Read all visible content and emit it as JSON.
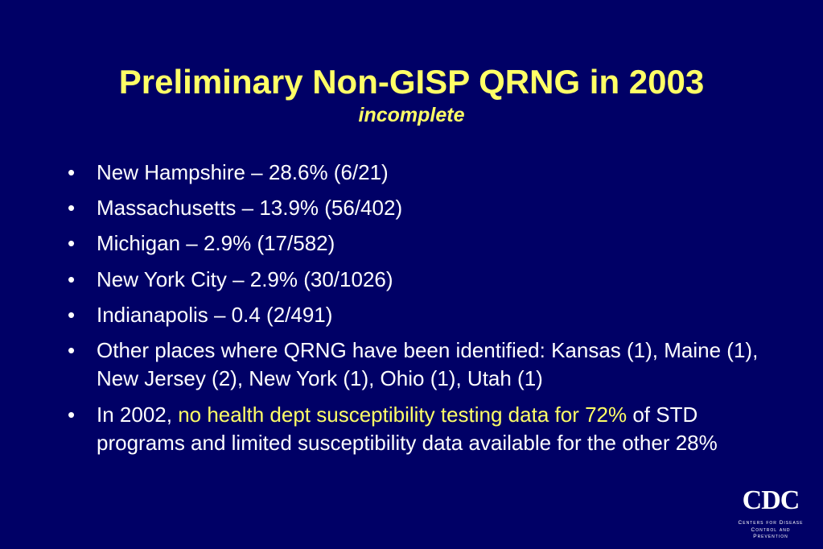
{
  "slide": {
    "title": "Preliminary Non-GISP QRNG in 2003",
    "subtitle": "incomplete",
    "bullet_marker": "•",
    "bullets": [
      {
        "text": "New Hampshire – 28.6% (6/21)"
      },
      {
        "text": "Massachusetts – 13.9% (56/402)"
      },
      {
        "text": "Michigan – 2.9% (17/582)"
      },
      {
        "text": "New York City – 2.9% (30/1026)"
      },
      {
        "text": "Indianapolis – 0.4 (2/491)"
      },
      {
        "text": "Other places where QRNG have been identified: Kansas (1), Maine (1), New Jersey (2), New York (1), Ohio (1), Utah (1)"
      },
      {
        "before": "In 2002, ",
        "highlight": "no health dept susceptibility testing data for 72%",
        "after": " of STD programs and limited susceptibility data available for the other 28%"
      }
    ]
  },
  "logo": {
    "name": "CDC",
    "line1": "Centers for Disease",
    "line2": "Control and Prevention"
  },
  "colors": {
    "background": "#000066",
    "title": "#ffff66",
    "text": "#ffffff",
    "highlight": "#ffff66"
  }
}
